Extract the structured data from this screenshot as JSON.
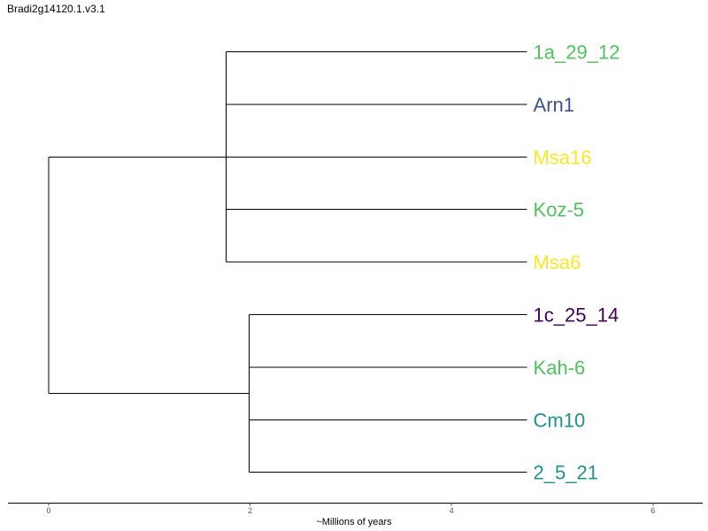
{
  "chart_data": {
    "type": "dendrogram",
    "title": "Bradi2g14120.1.v3.1",
    "xlabel": "~Millions of years",
    "xlim": [
      -0.4,
      6.5
    ],
    "xticks": [
      0,
      2,
      4,
      6
    ],
    "tips": [
      {
        "name": "1a_29_12",
        "color": "#4ec45a"
      },
      {
        "name": "Arn1",
        "color": "#3b528b"
      },
      {
        "name": "Msa16",
        "color": "#fde725"
      },
      {
        "name": "Koz-5",
        "color": "#4ec45a"
      },
      {
        "name": "Msa6",
        "color": "#fde725"
      },
      {
        "name": "1c_25_14",
        "color": "#440154"
      },
      {
        "name": "Kah-6",
        "color": "#4ec45a"
      },
      {
        "name": "Cm10",
        "color": "#21918c"
      },
      {
        "name": "2_5_21",
        "color": "#21918c"
      }
    ],
    "tip_x": 4.75,
    "root_x": 0.0,
    "clades": [
      {
        "node_x": 1.76,
        "tips": [
          0,
          1,
          2,
          3,
          4
        ]
      },
      {
        "node_x": 1.99,
        "tips": [
          5,
          6,
          7,
          8
        ]
      }
    ],
    "root_children_y": [
      2,
      6.5
    ]
  }
}
